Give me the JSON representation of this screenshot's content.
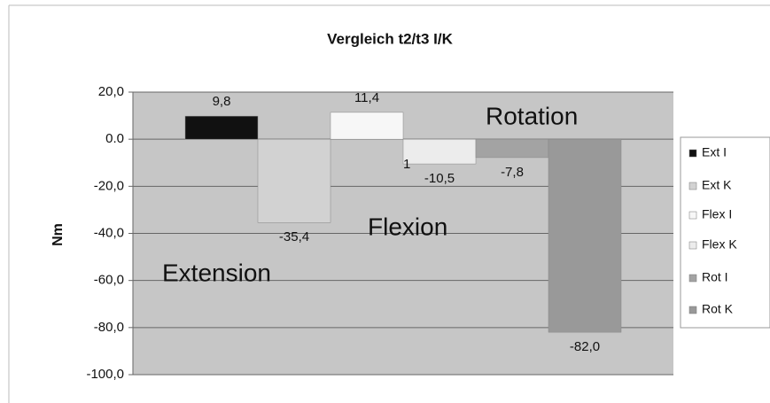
{
  "chart_data": {
    "type": "bar",
    "title": "Vergleich t2/t3 I/K",
    "y_label": "Nm",
    "categories": [
      null
    ],
    "series": [
      {
        "name": "Ext I",
        "color": "#111111",
        "values": [
          9.8
        ],
        "value_labels": [
          "9,8"
        ]
      },
      {
        "name": "Ext K",
        "color": "#d2d2d2",
        "values": [
          -35.4
        ],
        "value_labels": [
          "-35,4"
        ]
      },
      {
        "name": "Flex I",
        "color": "#f7f7f7",
        "values": [
          11.4
        ],
        "value_labels": [
          "11,4"
        ]
      },
      {
        "name": "Flex K",
        "color": "#ececec",
        "values": [
          -10.5
        ],
        "value_labels": [
          "-10,5"
        ]
      },
      {
        "name": "Rot I",
        "color": "#a3a3a3",
        "values": [
          -7.8
        ],
        "value_labels": [
          "-7,8"
        ]
      },
      {
        "name": "Rot K",
        "color": "#999999",
        "values": [
          -82.0
        ],
        "value_labels": [
          "-82,0"
        ]
      }
    ],
    "ylim": [
      -100,
      20
    ],
    "yticks": [
      {
        "value": -100,
        "label": "-100,0"
      },
      {
        "value": -80,
        "label": "-80,0"
      },
      {
        "value": -60,
        "label": "-60,0"
      },
      {
        "value": -40,
        "label": "-40,0"
      },
      {
        "value": -20,
        "label": "-20,0"
      },
      {
        "value": 0,
        "label": "0.0"
      },
      {
        "value": 20,
        "label": "20,0"
      }
    ],
    "grid": true,
    "legend": "right",
    "annotations": [
      "Extension",
      "Flexion",
      "Rotation",
      "1"
    ]
  }
}
